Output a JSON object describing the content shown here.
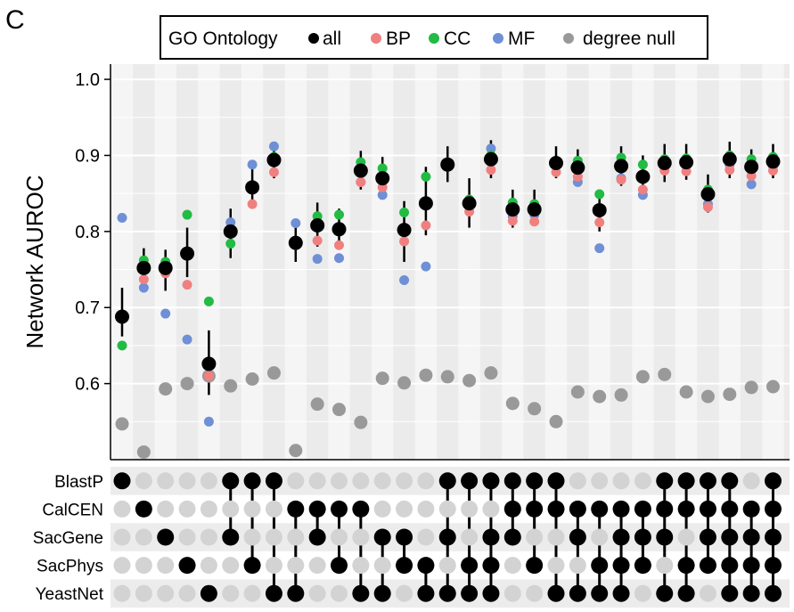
{
  "panel_letter": "C",
  "legend": {
    "title": "GO Ontology",
    "entries": [
      {
        "key": "all",
        "label": "all",
        "color": "#000000"
      },
      {
        "key": "BP",
        "label": "BP",
        "color": "#f08080"
      },
      {
        "key": "CC",
        "label": "CC",
        "color": "#22bb44"
      },
      {
        "key": "MF",
        "label": "MF",
        "color": "#6f8fd6"
      },
      {
        "key": "null",
        "label": "degree null",
        "color": "#999999"
      }
    ]
  },
  "chart_data": {
    "type": "scatter",
    "ylabel": "Network AUROC",
    "ylim": [
      0.5,
      1.02
    ],
    "yticks": [
      "1.0",
      "0.9",
      "0.8",
      "0.7",
      "0.6"
    ],
    "yticks_values": [
      1.0,
      0.9,
      0.8,
      0.7,
      0.6
    ],
    "networks": [
      "BlastP",
      "CalCEN",
      "SacGene",
      "SacPhys",
      "YeastNet"
    ],
    "combinations": [
      {
        "sets": [
          1,
          0,
          0,
          0,
          0
        ],
        "all": 0.688,
        "err": [
          0.662,
          0.726
        ],
        "BP": 0.685,
        "CC": 0.65,
        "MF": 0.818,
        "null": 0.547
      },
      {
        "sets": [
          0,
          1,
          0,
          0,
          0
        ],
        "all": 0.752,
        "err": [
          0.732,
          0.778
        ],
        "BP": 0.737,
        "CC": 0.762,
        "MF": 0.726,
        "null": 0.51
      },
      {
        "sets": [
          0,
          0,
          1,
          0,
          0
        ],
        "all": 0.752,
        "err": [
          0.722,
          0.776
        ],
        "BP": 0.745,
        "CC": 0.76,
        "MF": 0.692,
        "null": 0.593
      },
      {
        "sets": [
          0,
          0,
          0,
          1,
          0
        ],
        "all": 0.771,
        "err": [
          0.74,
          0.805
        ],
        "BP": 0.73,
        "CC": 0.822,
        "MF": 0.658,
        "null": 0.6
      },
      {
        "sets": [
          0,
          0,
          0,
          0,
          1
        ],
        "all": 0.626,
        "err": [
          0.585,
          0.67
        ],
        "BP": 0.61,
        "CC": 0.708,
        "MF": 0.55,
        "null": 0.61
      },
      {
        "sets": [
          1,
          0,
          1,
          0,
          0
        ],
        "all": 0.8,
        "err": [
          0.765,
          0.83
        ],
        "BP": 0.8,
        "CC": 0.784,
        "MF": 0.812,
        "null": 0.597
      },
      {
        "sets": [
          1,
          0,
          0,
          1,
          0
        ],
        "all": 0.858,
        "err": [
          0.833,
          0.885
        ],
        "BP": 0.836,
        "CC": 0.858,
        "MF": 0.888,
        "null": 0.606
      },
      {
        "sets": [
          1,
          0,
          0,
          0,
          1
        ],
        "all": 0.894,
        "err": [
          0.87,
          0.918
        ],
        "BP": 0.878,
        "CC": 0.898,
        "MF": 0.912,
        "null": 0.614
      },
      {
        "sets": [
          0,
          1,
          0,
          0,
          1
        ],
        "all": 0.785,
        "err": [
          0.76,
          0.808
        ],
        "BP": 0.784,
        "CC": 0.782,
        "MF": 0.811,
        "null": 0.512
      },
      {
        "sets": [
          0,
          1,
          1,
          0,
          0
        ],
        "all": 0.808,
        "err": [
          0.78,
          0.838
        ],
        "BP": 0.788,
        "CC": 0.82,
        "MF": 0.764,
        "null": 0.573
      },
      {
        "sets": [
          0,
          1,
          0,
          1,
          0
        ],
        "all": 0.803,
        "err": [
          0.78,
          0.83
        ],
        "BP": 0.782,
        "CC": 0.822,
        "MF": 0.765,
        "null": 0.566
      },
      {
        "sets": [
          0,
          1,
          0,
          0,
          1
        ],
        "all": 0.88,
        "err": [
          0.855,
          0.906
        ],
        "BP": 0.865,
        "CC": 0.891,
        "MF": 0.865,
        "null": 0.549
      },
      {
        "sets": [
          0,
          0,
          1,
          0,
          1
        ],
        "all": 0.87,
        "err": [
          0.845,
          0.898
        ],
        "BP": 0.858,
        "CC": 0.883,
        "MF": 0.848,
        "null": 0.607
      },
      {
        "sets": [
          0,
          0,
          1,
          1,
          0
        ],
        "all": 0.802,
        "err": [
          0.76,
          0.84
        ],
        "BP": 0.787,
        "CC": 0.825,
        "MF": 0.736,
        "null": 0.601
      },
      {
        "sets": [
          0,
          0,
          0,
          1,
          1
        ],
        "all": 0.837,
        "err": [
          0.795,
          0.885
        ],
        "BP": 0.808,
        "CC": 0.872,
        "MF": 0.754,
        "null": 0.611
      },
      {
        "sets": [
          1,
          0,
          1,
          0,
          1
        ],
        "all": 0.888,
        "err": [
          0.865,
          0.912
        ],
        "BP": 0.886,
        "CC": 0.891,
        "MF": 0.885,
        "null": 0.609
      },
      {
        "sets": [
          1,
          0,
          0,
          1,
          1
        ],
        "all": 0.837,
        "err": [
          0.805,
          0.87
        ],
        "BP": 0.826,
        "CC": 0.842,
        "MF": 0.835,
        "null": 0.604
      },
      {
        "sets": [
          1,
          0,
          1,
          1,
          1
        ],
        "all": 0.895,
        "err": [
          0.87,
          0.92
        ],
        "BP": 0.881,
        "CC": 0.9,
        "MF": 0.909,
        "null": 0.614
      },
      {
        "sets": [
          1,
          1,
          1,
          0,
          0
        ],
        "all": 0.829,
        "err": [
          0.805,
          0.855
        ],
        "BP": 0.814,
        "CC": 0.838,
        "MF": 0.82,
        "null": 0.574
      },
      {
        "sets": [
          1,
          1,
          0,
          1,
          0
        ],
        "all": 0.829,
        "err": [
          0.808,
          0.855
        ],
        "BP": 0.813,
        "CC": 0.836,
        "MF": 0.822,
        "null": 0.567
      },
      {
        "sets": [
          1,
          1,
          0,
          0,
          1
        ],
        "all": 0.89,
        "err": [
          0.87,
          0.912
        ],
        "BP": 0.878,
        "CC": 0.889,
        "MF": 0.888,
        "null": 0.55
      },
      {
        "sets": [
          0,
          1,
          1,
          0,
          1
        ],
        "all": 0.884,
        "err": [
          0.862,
          0.908
        ],
        "BP": 0.872,
        "CC": 0.893,
        "MF": 0.865,
        "null": 0.589
      },
      {
        "sets": [
          0,
          1,
          0,
          1,
          1
        ],
        "all": 0.828,
        "err": [
          0.8,
          0.855
        ],
        "BP": 0.812,
        "CC": 0.849,
        "MF": 0.778,
        "null": 0.583
      },
      {
        "sets": [
          0,
          1,
          1,
          1,
          1
        ],
        "all": 0.886,
        "err": [
          0.86,
          0.912
        ],
        "BP": 0.868,
        "CC": 0.897,
        "MF": 0.87,
        "null": 0.585
      },
      {
        "sets": [
          0,
          1,
          1,
          1,
          0
        ],
        "all": 0.872,
        "err": [
          0.845,
          0.9
        ],
        "BP": 0.855,
        "CC": 0.888,
        "MF": 0.848,
        "null": 0.609
      },
      {
        "sets": [
          1,
          1,
          1,
          0,
          1
        ],
        "all": 0.89,
        "err": [
          0.865,
          0.915
        ],
        "BP": 0.88,
        "CC": 0.895,
        "MF": 0.886,
        "null": 0.612
      },
      {
        "sets": [
          1,
          1,
          0,
          1,
          1
        ],
        "all": 0.891,
        "err": [
          0.868,
          0.915
        ],
        "BP": 0.879,
        "CC": 0.896,
        "MF": 0.887,
        "null": 0.589
      },
      {
        "sets": [
          1,
          1,
          1,
          1,
          0
        ],
        "all": 0.849,
        "err": [
          0.825,
          0.875
        ],
        "BP": 0.832,
        "CC": 0.855,
        "MF": 0.836,
        "null": 0.583
      },
      {
        "sets": [
          1,
          1,
          1,
          1,
          1
        ],
        "all": 0.895,
        "err": [
          0.87,
          0.918
        ],
        "BP": 0.881,
        "CC": 0.9,
        "MF": 0.888,
        "null": 0.586
      },
      {
        "sets": [
          0,
          1,
          1,
          1,
          1
        ],
        "all": 0.885,
        "err": [
          0.862,
          0.908
        ],
        "BP": 0.873,
        "CC": 0.895,
        "MF": 0.862,
        "null": 0.595
      },
      {
        "sets": [
          1,
          1,
          1,
          1,
          1
        ],
        "all": 0.892,
        "err": [
          0.87,
          0.915
        ],
        "BP": 0.88,
        "CC": 0.898,
        "MF": 0.886,
        "null": 0.596
      }
    ]
  }
}
